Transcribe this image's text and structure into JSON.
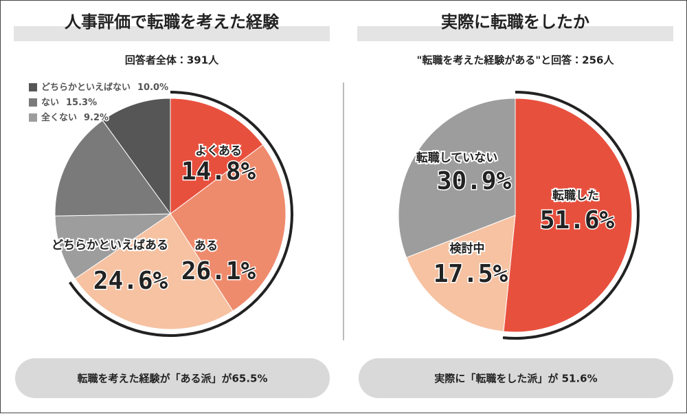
{
  "chart_data": [
    {
      "type": "pie",
      "title": "人事評価で転職を考えた経験",
      "subtitle": "回答者全体：391人",
      "categories": [
        "よくある",
        "ある",
        "どちらかといえばある",
        "全くない",
        "ない",
        "どちらかといえばない"
      ],
      "values": [
        14.8,
        26.1,
        24.6,
        9.2,
        15.3,
        10.0
      ],
      "value_labels": [
        "14.8%",
        "26.1%",
        "24.6%",
        "9.2%",
        "15.3%",
        "10.0%"
      ],
      "colors": [
        "#e8503e",
        "#ef8b6d",
        "#f6c2a2",
        "#9d9d9d",
        "#7a7a7a",
        "#565656"
      ],
      "legend": "top-left",
      "note": "転職を考えた経験が「ある派」が65.5%"
    },
    {
      "type": "pie",
      "title": "実際に転職をしたか",
      "subtitle": "\"転職を考えた経験がある\"と回答：256人",
      "categories": [
        "転職した",
        "検討中",
        "転職していない"
      ],
      "values": [
        51.6,
        17.5,
        30.9
      ],
      "value_labels": [
        "51.6%",
        "17.5%",
        "30.9%"
      ],
      "colors": [
        "#e8503e",
        "#f6c2a2",
        "#9d9d9d"
      ],
      "note": "実際に「転職をした派」が 51.6%"
    }
  ]
}
